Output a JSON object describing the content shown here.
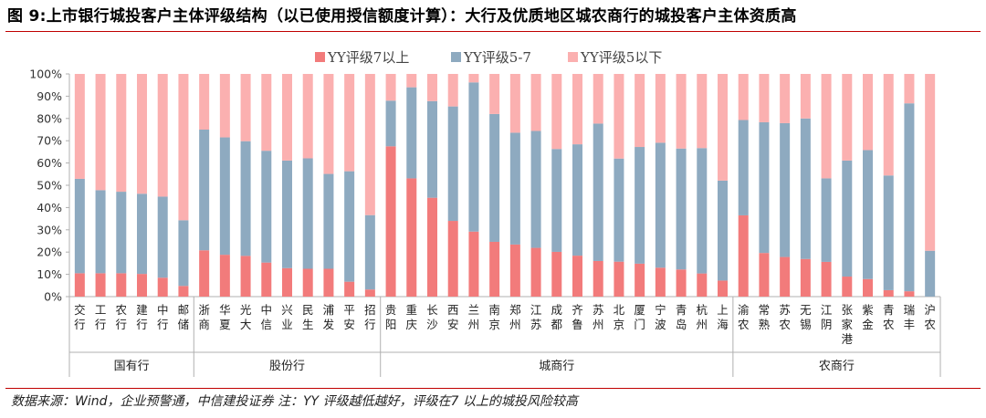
{
  "title": "图 9:上市银行城投客户主体评级结构（以已使用授信额度计算）：大行及优质地区城农商行的城投客户主体资质高",
  "source": "数据来源：Wind，企业预警通，中信建投证券 注：YY 评级越低越好，评级在7 以上的城投风险较高",
  "colors": {
    "rule": "#c00000",
    "axis": "#b0b0b0"
  },
  "chart_data": {
    "type": "bar",
    "stacked": true,
    "y_tick_labels": [
      "0%",
      "10%",
      "20%",
      "30%",
      "40%",
      "50%",
      "60%",
      "70%",
      "80%",
      "90%",
      "100%"
    ],
    "ylim": [
      0,
      100
    ],
    "grid": false,
    "legend_position": "top",
    "categories": [
      "交行",
      "工行",
      "农行",
      "建行",
      "中行",
      "邮储",
      "浙商",
      "华夏",
      "光大",
      "中信",
      "兴业",
      "民生",
      "浦发",
      "平安",
      "招行",
      "贵阳",
      "重庆",
      "长沙",
      "西安",
      "兰州",
      "南京",
      "郑州",
      "江苏",
      "成都",
      "齐鲁",
      "苏州",
      "北京",
      "厦门",
      "宁波",
      "青岛",
      "杭州",
      "上海",
      "渝农",
      "常熟",
      "苏农",
      "无锡",
      "江阴",
      "张家港",
      "紫金",
      "青农",
      "瑞丰",
      "沪农"
    ],
    "series": [
      {
        "name": "YY评级7以上",
        "color": "#f27b7b",
        "values": [
          10.5,
          10.5,
          10.5,
          10.2,
          8.5,
          4.8,
          20.8,
          18.8,
          18.3,
          15.3,
          12.8,
          12.5,
          12.5,
          6.7,
          3.2,
          67.5,
          53.1,
          44.4,
          34.0,
          29.2,
          24.6,
          23.4,
          21.9,
          20.1,
          18.4,
          16.0,
          15.7,
          14.8,
          13.0,
          12.2,
          10.4,
          7.2,
          36.5,
          19.6,
          17.8,
          16.9,
          15.6,
          9.0,
          7.9,
          2.9,
          2.4,
          0.0
        ]
      },
      {
        "name": "YY评级5-7",
        "color": "#8eaac0",
        "values": [
          42.4,
          37.3,
          36.6,
          36.0,
          36.4,
          29.5,
          54.2,
          52.7,
          51.5,
          50.2,
          48.3,
          49.6,
          42.6,
          49.6,
          33.4,
          20.5,
          40.9,
          43.4,
          51.4,
          67.0,
          57.4,
          50.2,
          52.5,
          46.2,
          50.0,
          61.7,
          46.3,
          52.4,
          56.1,
          54.3,
          56.3,
          44.9,
          42.8,
          58.7,
          60.1,
          63.1,
          37.5,
          52.1,
          57.9,
          51.5,
          84.4,
          20.6
        ]
      },
      {
        "name": "YY评级5以下",
        "color": "#fbb0b0",
        "values": [
          47.1,
          52.2,
          52.9,
          53.8,
          55.1,
          65.7,
          25.0,
          28.5,
          30.2,
          34.5,
          38.9,
          37.9,
          44.9,
          43.7,
          63.4,
          12.0,
          6.0,
          12.2,
          14.6,
          3.8,
          18.0,
          26.4,
          25.6,
          33.7,
          31.6,
          22.3,
          38.0,
          32.8,
          30.9,
          33.5,
          33.3,
          47.9,
          20.7,
          21.7,
          22.1,
          20.0,
          46.9,
          38.9,
          34.2,
          45.6,
          13.2,
          79.4
        ]
      }
    ],
    "groups": [
      {
        "label": "国有行",
        "start": 0,
        "end": 5
      },
      {
        "label": "股份行",
        "start": 6,
        "end": 14
      },
      {
        "label": "城商行",
        "start": 15,
        "end": 31
      },
      {
        "label": "农商行",
        "start": 32,
        "end": 41
      }
    ]
  }
}
